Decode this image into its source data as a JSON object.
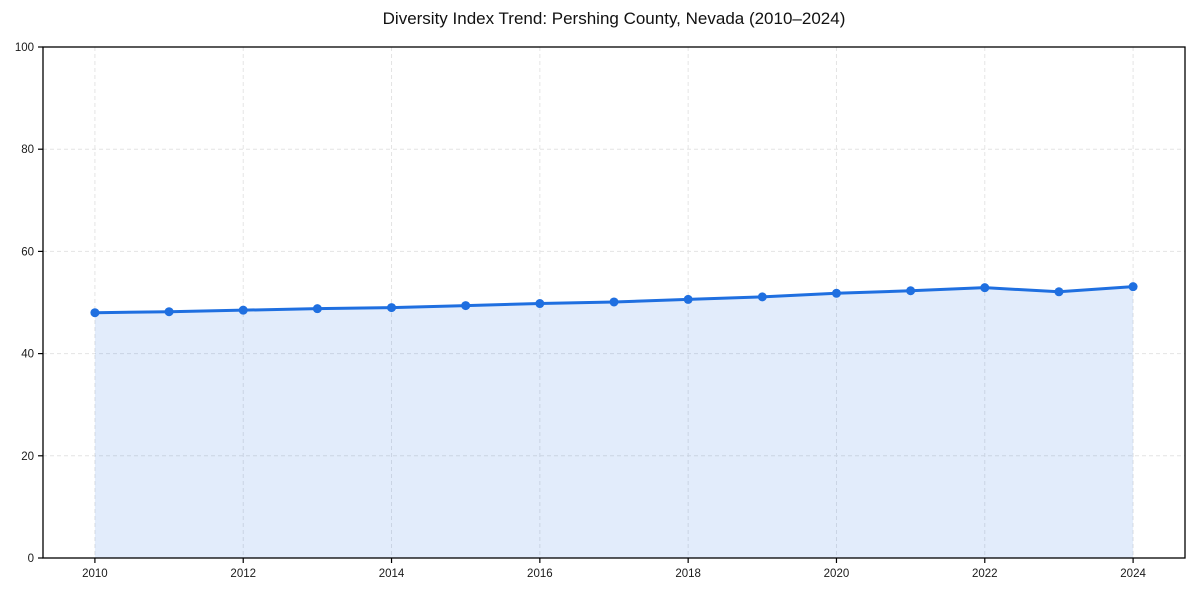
{
  "chart_data": {
    "type": "area",
    "title": "Diversity Index Trend: Pershing County, Nevada (2010–2024)",
    "xlabel": "",
    "ylabel": "",
    "x": [
      2010,
      2011,
      2012,
      2013,
      2014,
      2015,
      2016,
      2017,
      2018,
      2019,
      2020,
      2021,
      2022,
      2023,
      2024
    ],
    "series": [
      {
        "name": "Diversity Index",
        "values": [
          48.0,
          48.2,
          48.5,
          48.8,
          49.0,
          49.4,
          49.8,
          50.1,
          50.6,
          51.1,
          51.8,
          52.3,
          52.9,
          52.1,
          53.1
        ]
      }
    ],
    "xlim": [
      2009.3,
      2024.7
    ],
    "ylim": [
      0,
      100
    ],
    "x_ticks": [
      2010,
      2012,
      2014,
      2016,
      2018,
      2020,
      2022,
      2024
    ],
    "y_ticks": [
      0,
      20,
      40,
      60,
      80,
      100
    ],
    "grid": true,
    "legend": "none",
    "colors": {
      "line": "#1f6fe0",
      "marker": "#1f6fe0",
      "fill": "rgba(31,111,224,0.13)",
      "grid": "#e4e4e4",
      "spine": "#000000",
      "tick_label": "#1a1a1a",
      "title": "#111111",
      "background": "#ffffff"
    }
  }
}
